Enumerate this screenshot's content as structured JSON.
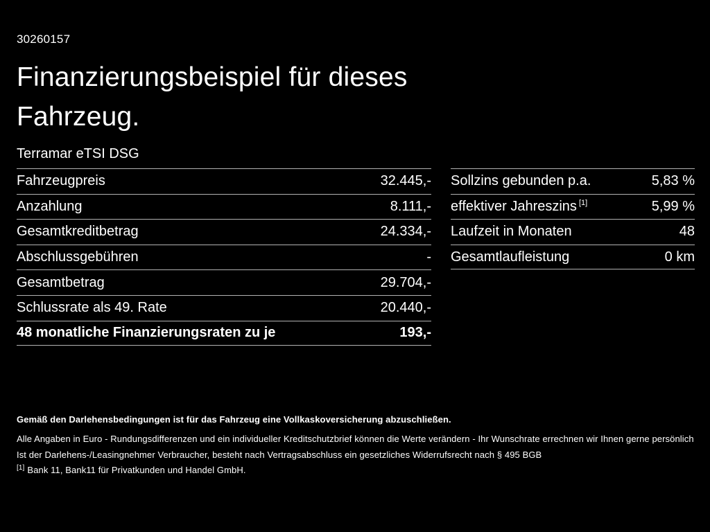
{
  "colors": {
    "background": "#000000",
    "text": "#ffffff",
    "divider": "#b3b3b3"
  },
  "header": {
    "vehicle_id": "30260157",
    "title_line1": "Finanzierungsbeispiel für dieses",
    "title_line2": "Fahrzeug.",
    "model": "Terramar eTSI DSG"
  },
  "left_table": {
    "rows": [
      {
        "label": "Fahrzeugpreis",
        "value": "32.445,-"
      },
      {
        "label": "Anzahlung",
        "value": "8.111,-"
      },
      {
        "label": "Gesamtkreditbetrag",
        "value": "24.334,-"
      },
      {
        "label": "Abschlussgebühren",
        "value": "-"
      },
      {
        "label": "Gesamtbetrag",
        "value": "29.704,-"
      },
      {
        "label": "Schlussrate als 49. Rate",
        "value": "20.440,-"
      },
      {
        "label": "48 monatliche Finanzierungsraten zu je",
        "value": "193,-"
      }
    ]
  },
  "right_table": {
    "rows": [
      {
        "label": "Sollzins gebunden p.a.",
        "value": "5,83 %"
      },
      {
        "label": "effektiver Jahreszins",
        "sup": "[1]",
        "value": "5,99 %"
      },
      {
        "label": "Laufzeit in Monaten",
        "value": "48"
      },
      {
        "label": "Gesamtlaufleistung",
        "value": "0 km"
      }
    ]
  },
  "footnotes": {
    "insurance": "Gemäß den Darlehensbedingungen ist für das Fahrzeug eine Vollkaskoversicherung abzuschließen.",
    "euro": "Alle Angaben in Euro - Rundungsdifferenzen und ein individueller Kreditschutzbrief können die Werte verändern - Ihr Wunschrate errechnen wir Ihnen gerne persönlich",
    "widerruf": "Ist der Darlehens-/Leasingnehmer Verbraucher, besteht nach Vertragsabschluss ein gesetzliches Widerrufsrecht nach § 495 BGB",
    "bank_ref_marker": "[1]",
    "bank_ref_text": "Bank 11, Bank11 für Privatkunden und Handel GmbH."
  }
}
